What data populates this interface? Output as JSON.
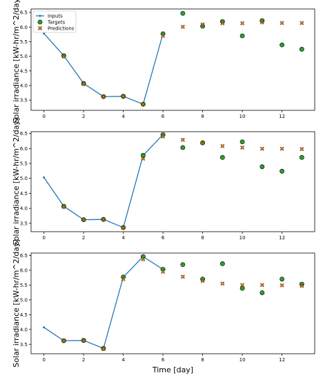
{
  "chart_data": [
    {
      "type": "line",
      "ylabel": "Solar irradiance [kW-hr/m^2/day]",
      "xlabel": "",
      "xlim": [
        -0.65,
        13.65
      ],
      "ylim": [
        3.15,
        6.62
      ],
      "xticks": [
        "0",
        "2",
        "4",
        "6",
        "8",
        "10",
        "12"
      ],
      "yticks": [
        "3.5",
        "4.0",
        "4.5",
        "5.0",
        "5.5",
        "6.0",
        "6.5"
      ],
      "legend": {
        "placement": "top-left",
        "entries": [
          "Inputs",
          "Targets",
          "Predictions"
        ]
      },
      "series": [
        {
          "name": "Inputs",
          "x": [
            0,
            1,
            2,
            3,
            4,
            5,
            6
          ],
          "values": [
            5.78,
            5.02,
            4.07,
            3.62,
            3.63,
            3.36,
            5.77
          ],
          "color": "#1f77b4"
        },
        {
          "name": "Targets",
          "x": [
            1,
            2,
            3,
            4,
            5,
            6,
            7,
            8,
            9,
            10,
            11,
            12,
            13
          ],
          "values": [
            5.02,
            4.07,
            3.62,
            3.63,
            3.36,
            5.77,
            6.47,
            6.03,
            6.19,
            5.7,
            6.22,
            5.39,
            5.24
          ],
          "color": "#2ca02c"
        },
        {
          "name": "Predictions",
          "x": [
            1,
            2,
            3,
            4,
            5,
            6,
            7,
            8,
            9,
            10,
            11,
            12,
            13
          ],
          "values": [
            4.99,
            4.05,
            3.62,
            3.62,
            3.36,
            5.7,
            6.01,
            6.09,
            6.13,
            6.13,
            6.16,
            6.14,
            6.14
          ],
          "color": "#ff7f0e"
        }
      ]
    },
    {
      "type": "line",
      "ylabel": "Solar irradiance [kW-hr/m^2/day]",
      "xlabel": "",
      "xlim": [
        -0.65,
        13.65
      ],
      "ylim": [
        3.22,
        6.56
      ],
      "xticks": [
        "0",
        "2",
        "4",
        "6",
        "8",
        "10",
        "12"
      ],
      "yticks": [
        "3.5",
        "4.0",
        "4.5",
        "5.0",
        "5.5",
        "6.0",
        "6.5"
      ],
      "series": [
        {
          "name": "Inputs",
          "x": [
            0,
            1,
            2,
            3,
            4,
            5,
            6
          ],
          "values": [
            5.03,
            4.07,
            3.62,
            3.63,
            3.36,
            5.77,
            6.46
          ],
          "color": "#1f77b4"
        },
        {
          "name": "Targets",
          "x": [
            1,
            2,
            3,
            4,
            5,
            6,
            7,
            8,
            9,
            10,
            11,
            12,
            13
          ],
          "values": [
            4.07,
            3.62,
            3.63,
            3.36,
            5.77,
            6.46,
            6.03,
            6.19,
            5.7,
            6.22,
            5.39,
            5.24,
            5.7
          ],
          "color": "#2ca02c"
        },
        {
          "name": "Predictions",
          "x": [
            1,
            2,
            3,
            4,
            5,
            6,
            7,
            8,
            9,
            10,
            11,
            12,
            13
          ],
          "values": [
            4.05,
            3.62,
            3.63,
            3.35,
            5.66,
            6.4,
            6.29,
            6.18,
            6.08,
            6.03,
            5.99,
            5.99,
            5.98
          ],
          "color": "#ff7f0e"
        }
      ]
    },
    {
      "type": "line",
      "ylabel": "Solar irradiance [kW-hr/m^2/day]",
      "xlabel": "Time [day]",
      "xlim": [
        -0.65,
        13.65
      ],
      "ylim": [
        3.18,
        6.58
      ],
      "xticks": [
        "0",
        "2",
        "4",
        "6",
        "8",
        "10",
        "12"
      ],
      "yticks": [
        "3.5",
        "4.0",
        "4.5",
        "5.0",
        "5.5",
        "6.0",
        "6.5"
      ],
      "series": [
        {
          "name": "Inputs",
          "x": [
            0,
            1,
            2,
            3,
            4,
            5,
            6
          ],
          "values": [
            4.07,
            3.62,
            3.63,
            3.36,
            5.77,
            6.46,
            6.03
          ],
          "color": "#1f77b4"
        },
        {
          "name": "Targets",
          "x": [
            1,
            2,
            3,
            4,
            5,
            6,
            7,
            8,
            9,
            10,
            11,
            12,
            13
          ],
          "values": [
            3.62,
            3.63,
            3.36,
            5.77,
            6.46,
            6.03,
            6.19,
            5.7,
            6.22,
            5.39,
            5.24,
            5.7,
            5.53
          ],
          "color": "#2ca02c"
        },
        {
          "name": "Predictions",
          "x": [
            1,
            2,
            3,
            4,
            5,
            6,
            7,
            8,
            9,
            10,
            11,
            12,
            13
          ],
          "values": [
            3.62,
            3.62,
            3.34,
            5.7,
            6.37,
            5.95,
            5.78,
            5.64,
            5.55,
            5.5,
            5.5,
            5.49,
            5.47
          ],
          "color": "#ff7f0e"
        }
      ]
    }
  ]
}
